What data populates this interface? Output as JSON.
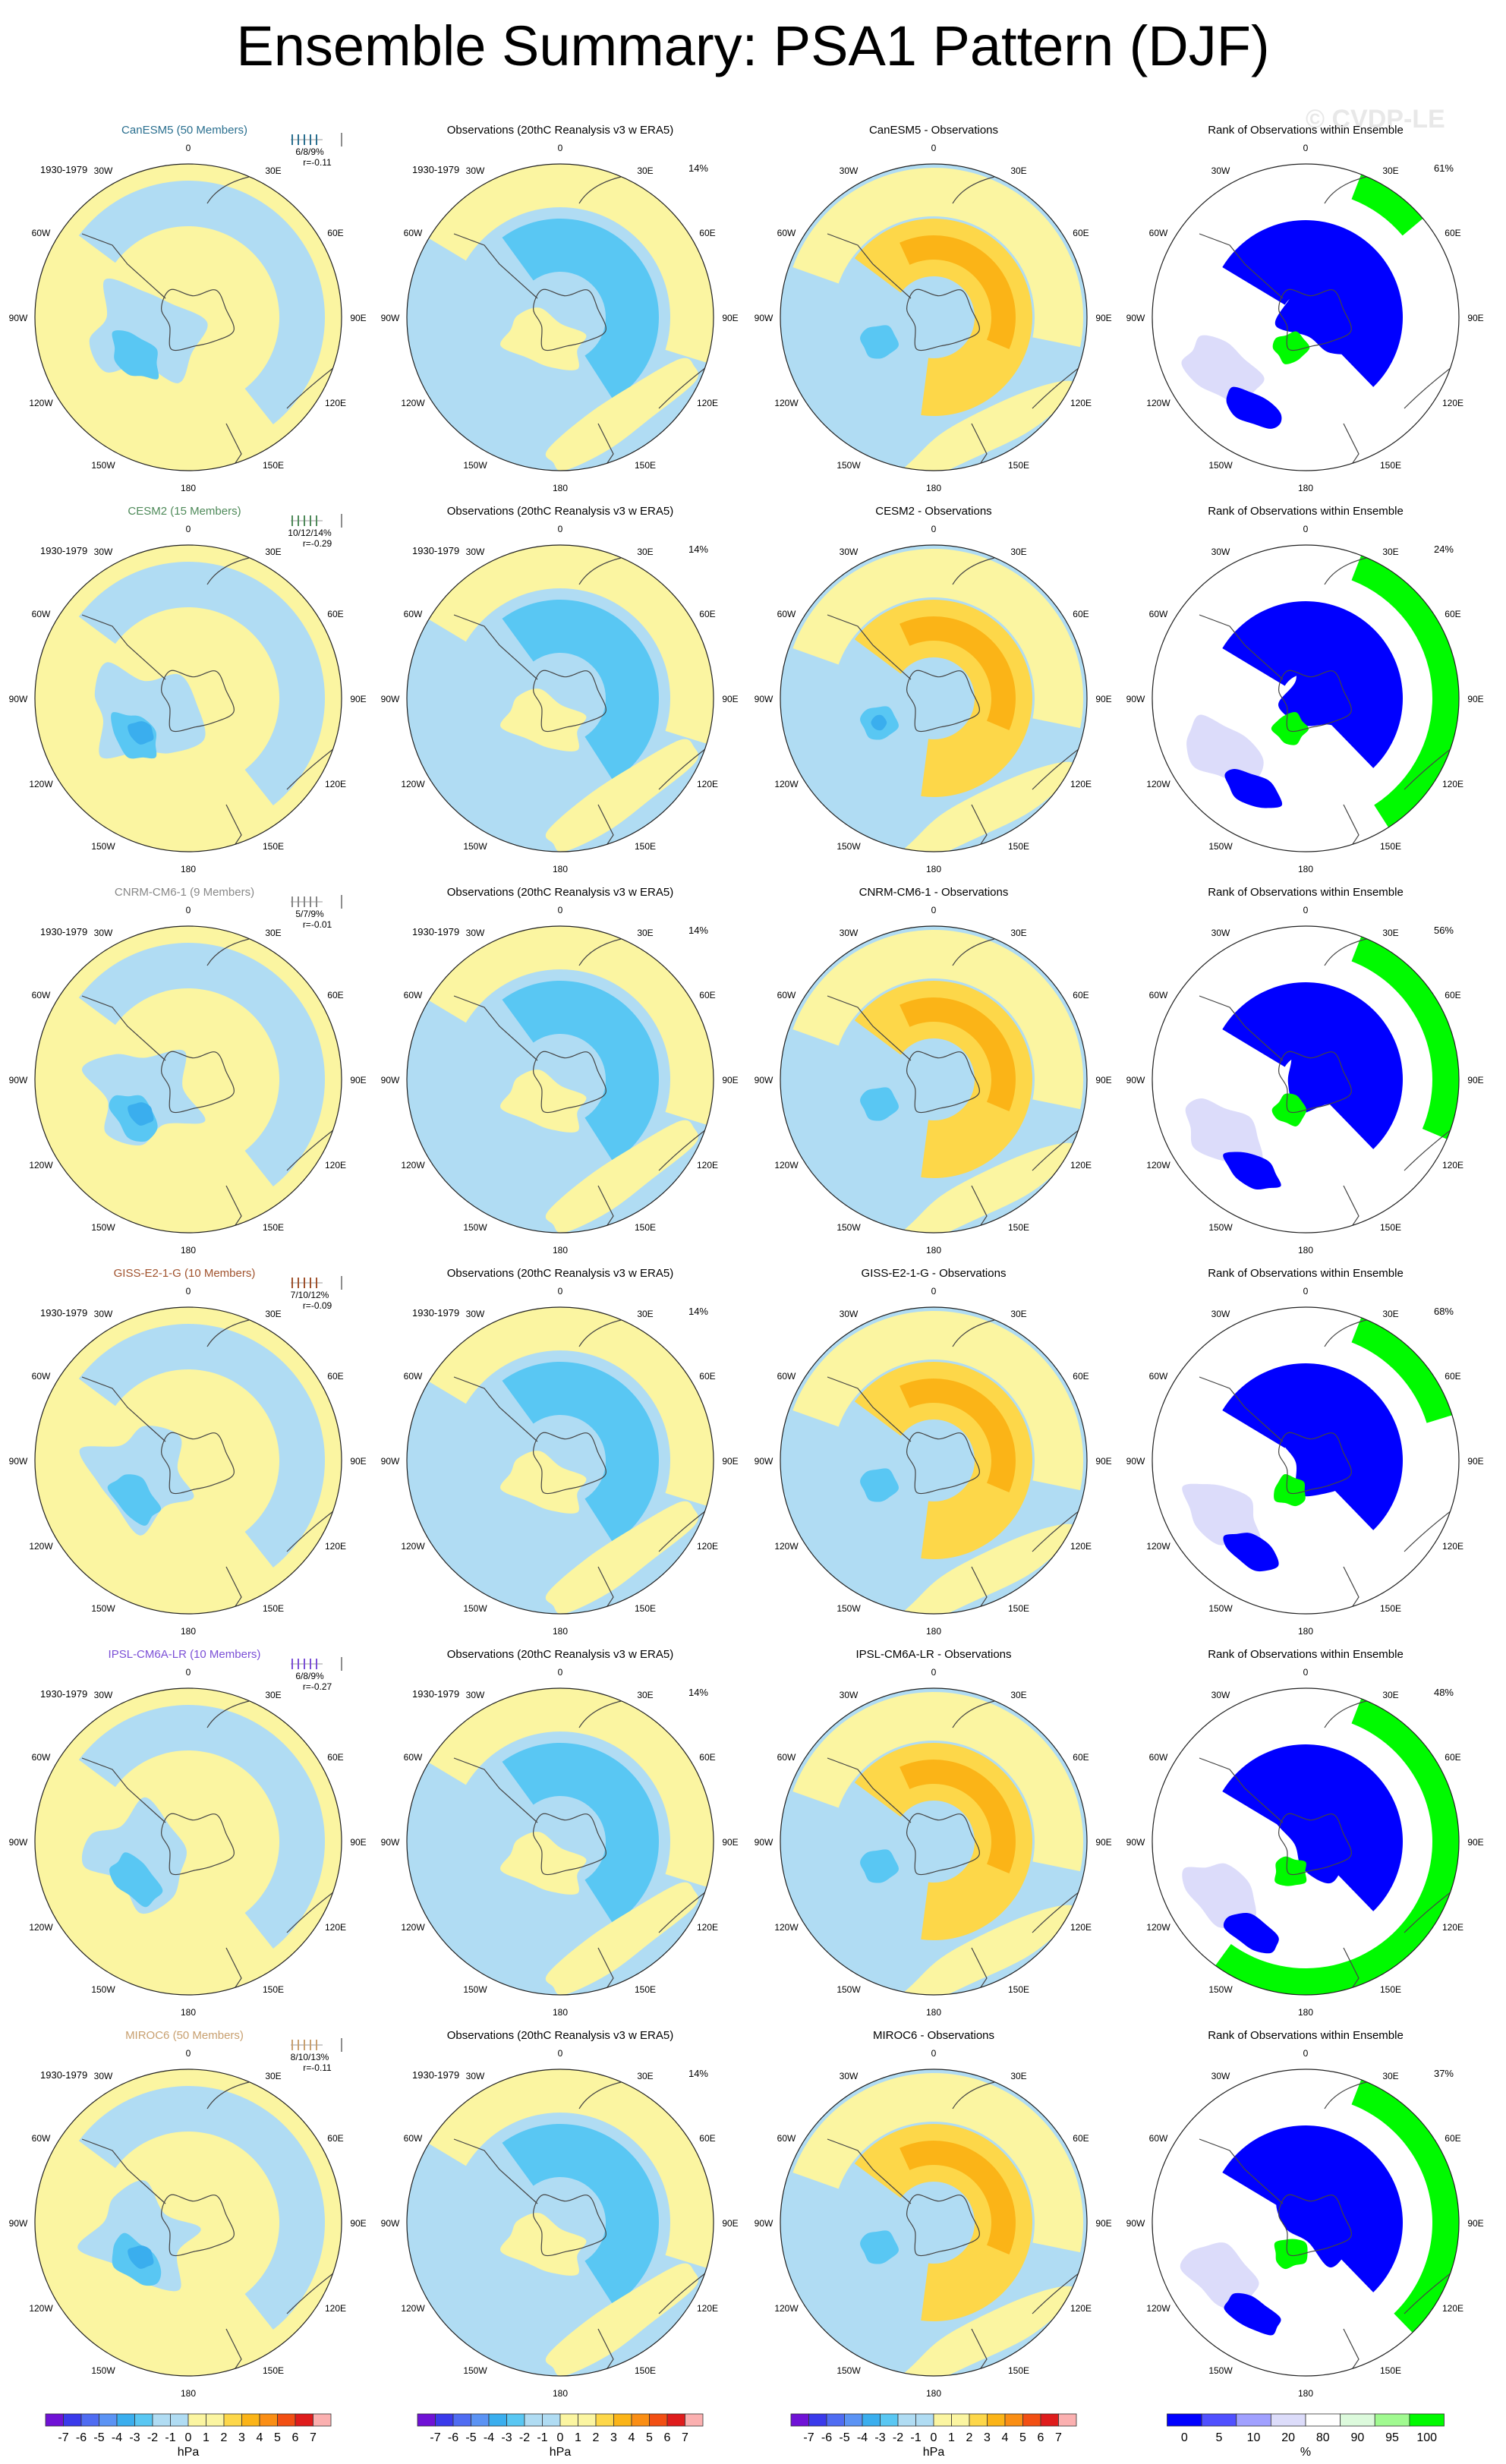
{
  "title": "Ensemble Summary: PSA1 Pattern (DJF)",
  "watermark": "© CVDP-LE",
  "period": "1930-1979",
  "lon_labels": [
    "0",
    "30E",
    "60E",
    "90E",
    "120E",
    "150E",
    "180",
    "150W",
    "120W",
    "90W",
    "60W",
    "30W"
  ],
  "columns": {
    "obs_title": "Observations (20thC Reanalysis v3 w ERA5)",
    "diff_suffix": " - Observations",
    "rank_title": "Rank of Observations within Ensemble"
  },
  "colors": {
    "neg7": "#6f12d6",
    "neg6": "#3a3aeb",
    "neg5": "#4f6cf2",
    "neg4": "#5b93f4",
    "neg3": "#3aaeee",
    "neg2": "#59c7f3",
    "neg1": "#b0dcf3",
    "pos1": "#fbf5a1",
    "pos2": "#fdd749",
    "pos3": "#fbb417",
    "pos4": "#fa8e14",
    "pos5": "#f24f13",
    "pos6": "#df1c1c",
    "pos7": "#fbb0b0",
    "rank0": "#0000ff",
    "rank5": "#5050ff",
    "rank10": "#a0a0ff",
    "rank20": "#dcdcfa",
    "rank80": "#ffffff",
    "rank90": "#dcfadc",
    "rank95": "#a0fa90",
    "rank100": "#00fa00",
    "model_canesm5": "#2a6f8f",
    "model_cesm2": "#4f8a5a",
    "model_cnrm": "#888888",
    "model_giss": "#a0522d",
    "model_ipsl": "#7b4fd6",
    "model_miroc6": "#c8a070"
  },
  "models": [
    {
      "name": "CanESM5 (50 Members)",
      "short": "CanESM5",
      "stats": "6/8/9%",
      "r": "r=-0.11",
      "obs_pct": "14%",
      "rank_pct": "61%",
      "color_key": "model_canesm5"
    },
    {
      "name": "CESM2 (15 Members)",
      "short": "CESM2",
      "stats": "10/12/14%",
      "r": "r=-0.29",
      "obs_pct": "14%",
      "rank_pct": "24%",
      "color_key": "model_cesm2"
    },
    {
      "name": "CNRM-CM6-1 (9 Members)",
      "short": "CNRM-CM6-1",
      "stats": "5/7/9%",
      "r": "r=-0.01",
      "obs_pct": "14%",
      "rank_pct": "56%",
      "color_key": "model_cnrm"
    },
    {
      "name": "GISS-E2-1-G (10 Members)",
      "short": "GISS-E2-1-G",
      "stats": "7/10/12%",
      "r": "r=-0.09",
      "obs_pct": "14%",
      "rank_pct": "68%",
      "color_key": "model_giss"
    },
    {
      "name": "IPSL-CM6A-LR (10 Members)",
      "short": "IPSL-CM6A-LR",
      "stats": "6/8/9%",
      "r": "r=-0.27",
      "obs_pct": "14%",
      "rank_pct": "48%",
      "color_key": "model_ipsl"
    },
    {
      "name": "MIROC6 (50 Members)",
      "short": "MIROC6",
      "stats": "8/10/13%",
      "r": "r=-0.11",
      "obs_pct": "14%",
      "rank_pct": "37%",
      "color_key": "model_miroc6"
    }
  ],
  "colorbar_hpa": {
    "labels": [
      "-7",
      "-6",
      "-5",
      "-4",
      "-3",
      "-2",
      "-1",
      "0",
      "1",
      "2",
      "3",
      "4",
      "5",
      "6",
      "7"
    ],
    "colors": [
      "neg7",
      "neg6",
      "neg5",
      "neg4",
      "neg3",
      "neg2",
      "neg1",
      "neg1",
      "pos1",
      "pos1",
      "pos2",
      "pos3",
      "pos4",
      "pos5",
      "pos6",
      "pos7"
    ],
    "unit": "hPa"
  },
  "colorbar_rank": {
    "labels": [
      "0",
      "5",
      "10",
      "20",
      "80",
      "90",
      "95",
      "100"
    ],
    "colors": [
      "rank0",
      "rank5",
      "rank10",
      "rank20",
      "rank80",
      "rank90",
      "rank95",
      "rank100"
    ],
    "unit": "%"
  }
}
